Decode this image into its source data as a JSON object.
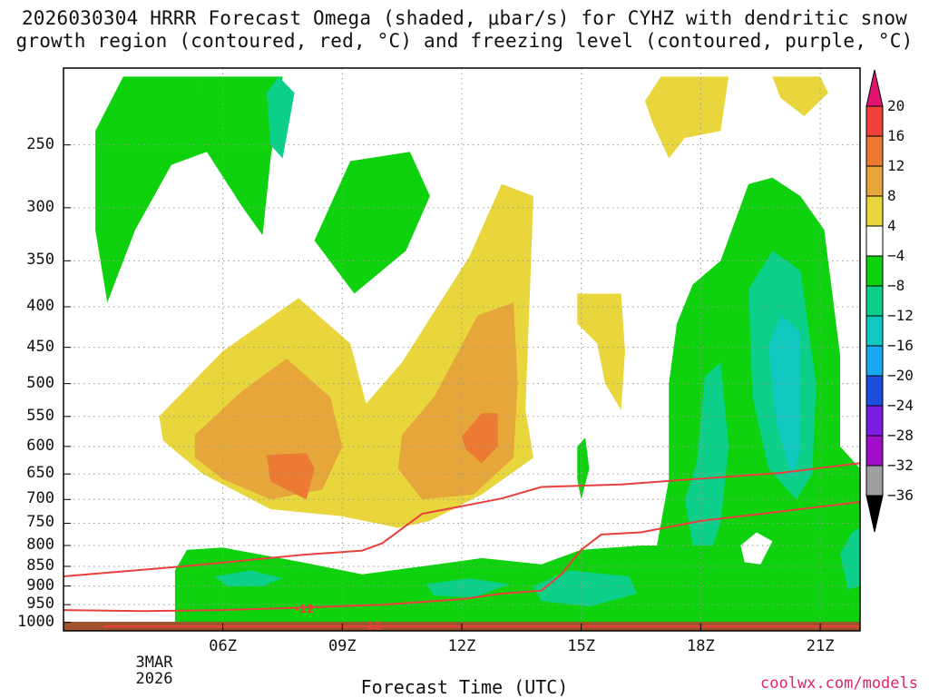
{
  "title_line1": "2026030304 HRRR Forecast Omega (shaded, μbar/s) for CYHZ with dendritic snow",
  "title_line2": "growth region (contoured, red, °C) and freezing level (contoured, purple, °C)",
  "xlabel": "Forecast Time (UTC)",
  "credit": "coolwx.com/models",
  "colors": {
    "ground": "#a0522d",
    "dgz_contour": "#e8403c",
    "grid": "#9a9a9a"
  },
  "chart_data": {
    "type": "heatmap",
    "title": "2026030304 HRRR Forecast Omega (shaded, μbar/s) for CYHZ with dendritic snow growth region (contoured, red, °C) and freezing level (contoured, purple, °C)",
    "xlabel": "Forecast Time (UTC)",
    "ylabel": "",
    "x_ticks": [
      "06Z",
      "09Z",
      "12Z",
      "15Z",
      "18Z",
      "21Z"
    ],
    "x_tick_hours": [
      6,
      9,
      12,
      15,
      18,
      21
    ],
    "x_date_lines": [
      "3MAR",
      "2026"
    ],
    "xlim_hours": [
      2,
      22
    ],
    "y_ticks": [
      250,
      300,
      350,
      400,
      450,
      500,
      550,
      600,
      650,
      700,
      750,
      800,
      850,
      900,
      950,
      1000
    ],
    "ylim_hPa": [
      200,
      1025
    ],
    "y_scale": "log-pressure",
    "grid": true,
    "colorbar": {
      "levels": [
        -36,
        -32,
        -28,
        -24,
        -20,
        -16,
        -12,
        -8,
        -4,
        4,
        8,
        12,
        16,
        20
      ],
      "labels": [
        "20",
        "16",
        "12",
        "8",
        "4",
        "−4",
        "−8",
        "−12",
        "−16",
        "−20",
        "−24",
        "−28",
        "−32",
        "−36"
      ],
      "colors": {
        "above_20": "#e0156f",
        "16_20": "#f0403c",
        "12_16": "#ec7a33",
        "8_12": "#e6a63a",
        "4_8": "#e8d63c",
        "m4_4": "#ffffff",
        "m8_m4": "#0ed20e",
        "m12_m8": "#0ccf8a",
        "m16_m12": "#10c8c0",
        "m20_m16": "#1aa8f0",
        "m24_m20": "#1e4ee0",
        "m28_m24": "#7b1de0",
        "m32_m28": "#a010c8",
        "m36_m32": "#9e9e9e",
        "below_m36": "#000000"
      }
    },
    "contours": {
      "dgz_labels": [
        "-12",
        "-12"
      ],
      "line1_hPa": [
        [
          2,
          875
        ],
        [
          5,
          850
        ],
        [
          8,
          822
        ],
        [
          9.5,
          812
        ],
        [
          10,
          795
        ],
        [
          11,
          730
        ],
        [
          13,
          698
        ],
        [
          14,
          675
        ],
        [
          16,
          670
        ],
        [
          20,
          648
        ],
        [
          22,
          630
        ]
      ],
      "line2_hPa": [
        [
          2,
          965
        ],
        [
          4,
          968
        ],
        [
          6,
          965
        ],
        [
          8,
          958
        ],
        [
          10,
          950
        ],
        [
          12,
          935
        ],
        [
          13,
          920
        ],
        [
          14,
          912
        ],
        [
          14.5,
          870
        ],
        [
          15,
          810
        ],
        [
          15.5,
          775
        ],
        [
          16.5,
          770
        ],
        [
          18,
          745
        ],
        [
          20,
          725
        ],
        [
          22,
          705
        ]
      ]
    }
  }
}
